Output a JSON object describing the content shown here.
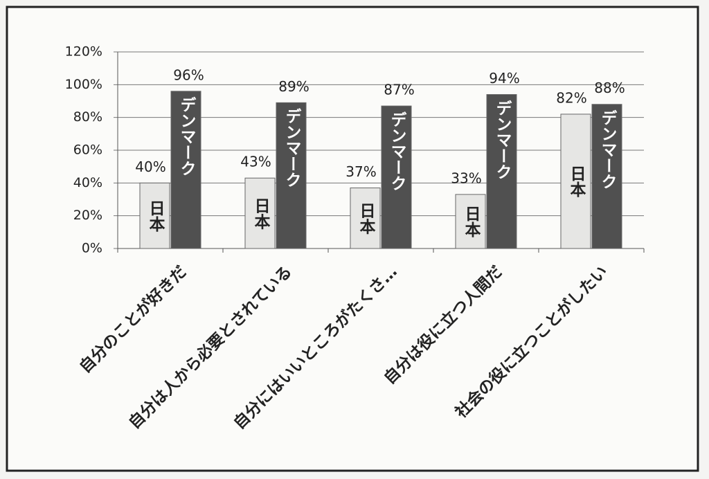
{
  "chart_data": {
    "type": "bar",
    "categories": [
      "自分のことが好きだ",
      "自分は人から必要とされている",
      "自分にはいいところがたくさ…",
      "自分は役に立つ人間だ",
      "社会の役に立つことがしたい"
    ],
    "series": [
      {
        "name": "日本",
        "color": "#e6e6e4",
        "text_color": "#222222",
        "values": [
          40,
          43,
          37,
          33,
          82
        ],
        "value_labels": [
          "40%",
          "43%",
          "37%",
          "33%",
          "82%"
        ]
      },
      {
        "name": "デンマーク",
        "color": "#505050",
        "text_color": "#ffffff",
        "values": [
          96,
          89,
          87,
          94,
          88
        ],
        "value_labels": [
          "96%",
          "89%",
          "87%",
          "94%",
          "88%"
        ]
      }
    ],
    "ylim": [
      0,
      120
    ],
    "yticks": [
      {
        "value": 0,
        "label": "0%"
      },
      {
        "value": 20,
        "label": "20%"
      },
      {
        "value": 40,
        "label": "40%"
      },
      {
        "value": 60,
        "label": "60%"
      },
      {
        "value": 80,
        "label": "80%"
      },
      {
        "value": 100,
        "label": "100%"
      },
      {
        "value": 120,
        "label": "120%"
      }
    ],
    "grid": true
  }
}
